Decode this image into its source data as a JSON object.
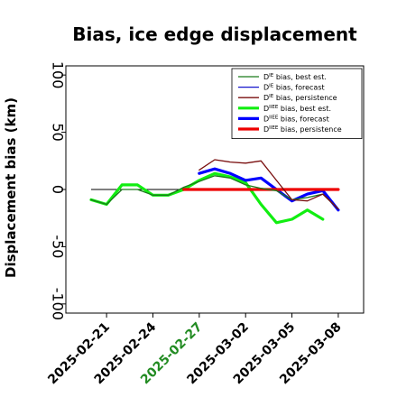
{
  "chart_data": {
    "type": "line",
    "title": "Bias, ice edge displacement",
    "xlabel": "",
    "ylabel": "Displacement bias (km)",
    "ylim": [
      -108,
      108
    ],
    "yticks": [
      -100,
      -50,
      0,
      50,
      100
    ],
    "x": [
      "2025-02-20",
      "2025-02-21",
      "2025-02-22",
      "2025-02-23",
      "2025-02-24",
      "2025-02-25",
      "2025-02-26",
      "2025-02-27",
      "2025-02-28",
      "2025-03-01",
      "2025-03-02",
      "2025-03-03",
      "2025-03-04",
      "2025-03-05",
      "2025-03-06",
      "2025-03-07",
      "2025-03-08"
    ],
    "xticks": [
      {
        "date": "2025-02-21",
        "color": "#000000"
      },
      {
        "date": "2025-02-24",
        "color": "#000000"
      },
      {
        "date": "2025-02-27",
        "color": "#228B22"
      },
      {
        "date": "2025-03-02",
        "color": "#000000"
      },
      {
        "date": "2025-03-05",
        "color": "#000000"
      },
      {
        "date": "2025-03-08",
        "color": "#000000"
      }
    ],
    "grid": false,
    "legend_position": "top-right",
    "series": [
      {
        "name_main": "D",
        "name_sup": "IE",
        "name_rest": " bias, best est.",
        "color": "#1a7a1a",
        "width": 1.3,
        "values": [
          -9,
          -13,
          0,
          0,
          -5,
          -5,
          2,
          7,
          12,
          10,
          4,
          1,
          -1,
          -9,
          -7,
          -4,
          -17
        ]
      },
      {
        "name_main": "D",
        "name_sup": "IE",
        "name_rest": " bias, forecast",
        "color": "#1515cc",
        "width": 1.3,
        "values": [
          null,
          null,
          null,
          null,
          null,
          null,
          null,
          null,
          null,
          null,
          null,
          null,
          null,
          null,
          null,
          null,
          null
        ]
      },
      {
        "name_main": "D",
        "name_sup": "IE",
        "name_rest": " bias, persistence",
        "color": "#7a0f0f",
        "width": 1.3,
        "values": [
          null,
          null,
          null,
          null,
          null,
          null,
          null,
          17,
          26,
          24,
          23,
          25,
          8,
          -9,
          -10,
          -4,
          -17
        ]
      },
      {
        "name_main": "D",
        "name_sup": "IIEE",
        "name_rest": " bias, best est.",
        "color": "#11ee11",
        "width": 3.2,
        "values": [
          -9,
          -13,
          4,
          4,
          -5,
          -5,
          0,
          8,
          14,
          11,
          6,
          -13,
          -29,
          -26,
          -18,
          -26,
          null
        ]
      },
      {
        "name_main": "D",
        "name_sup": "IIEE",
        "name_rest": " bias, forecast",
        "color": "#0000ff",
        "width": 3.2,
        "values": [
          null,
          null,
          null,
          null,
          null,
          null,
          null,
          14,
          18,
          14,
          8,
          10,
          0,
          -10,
          -4,
          -1,
          -18
        ]
      },
      {
        "name_main": "D",
        "name_sup": "IIEE",
        "name_rest": " bias, persistence",
        "color": "#ee0000",
        "width": 3.2,
        "values": [
          null,
          null,
          null,
          null,
          null,
          null,
          0,
          0,
          0,
          0,
          0,
          0,
          0,
          0,
          0,
          0,
          0
        ]
      }
    ]
  }
}
